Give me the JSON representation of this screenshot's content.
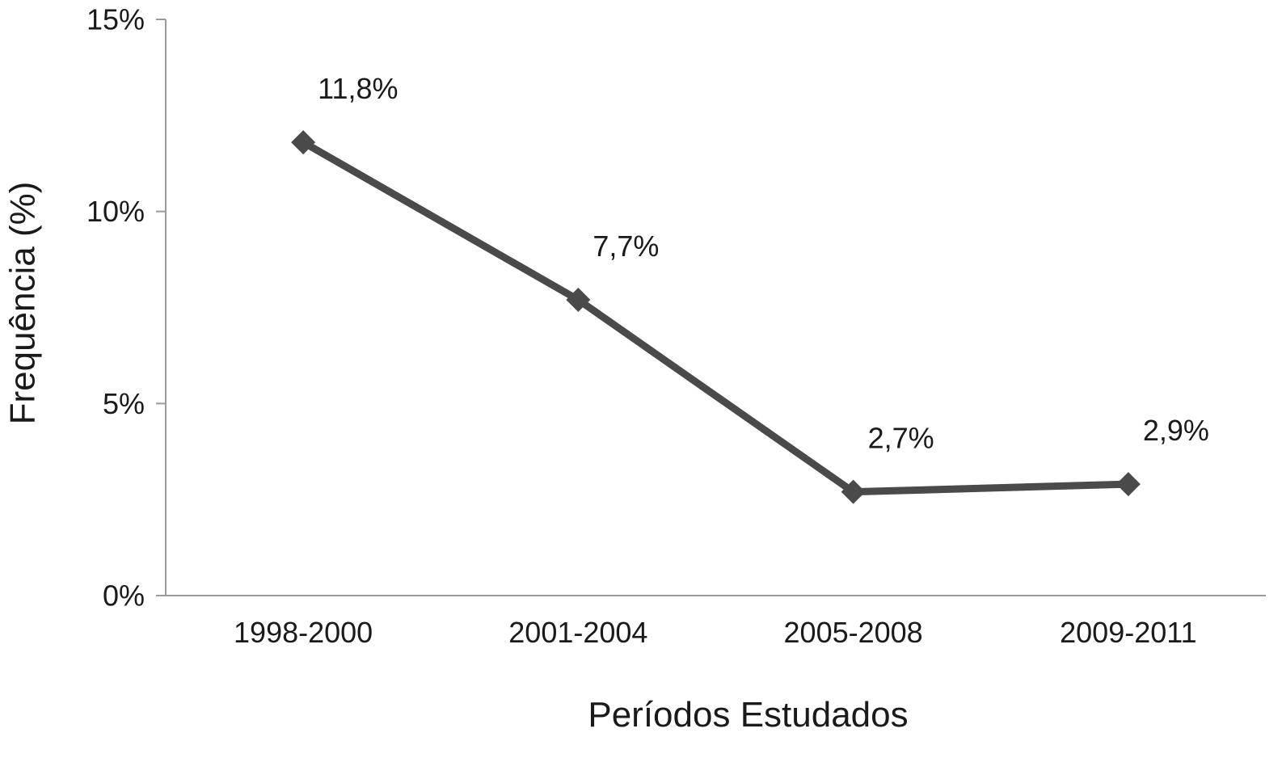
{
  "chart_data": {
    "type": "line",
    "title": "",
    "xlabel": "Períodos Estudados",
    "ylabel": "Frequência (%)",
    "categories": [
      "1998-2000",
      "2001-2004",
      "2005-2008",
      "2009-2011"
    ],
    "series": [
      {
        "values": [
          11.8,
          7.7,
          2.7,
          2.9
        ],
        "labels": [
          "11,8%",
          "7,7%",
          "2,7%",
          "2,9%"
        ],
        "color": "#4a4a4a",
        "marker": "diamond"
      }
    ],
    "ylim": [
      0,
      15
    ],
    "yticks": [
      0,
      5,
      10,
      15
    ],
    "ytick_labels": [
      "0%",
      "5%",
      "10%",
      "15%"
    ],
    "grid": false,
    "legend": "none",
    "axis_color": "#9a9a9a"
  }
}
